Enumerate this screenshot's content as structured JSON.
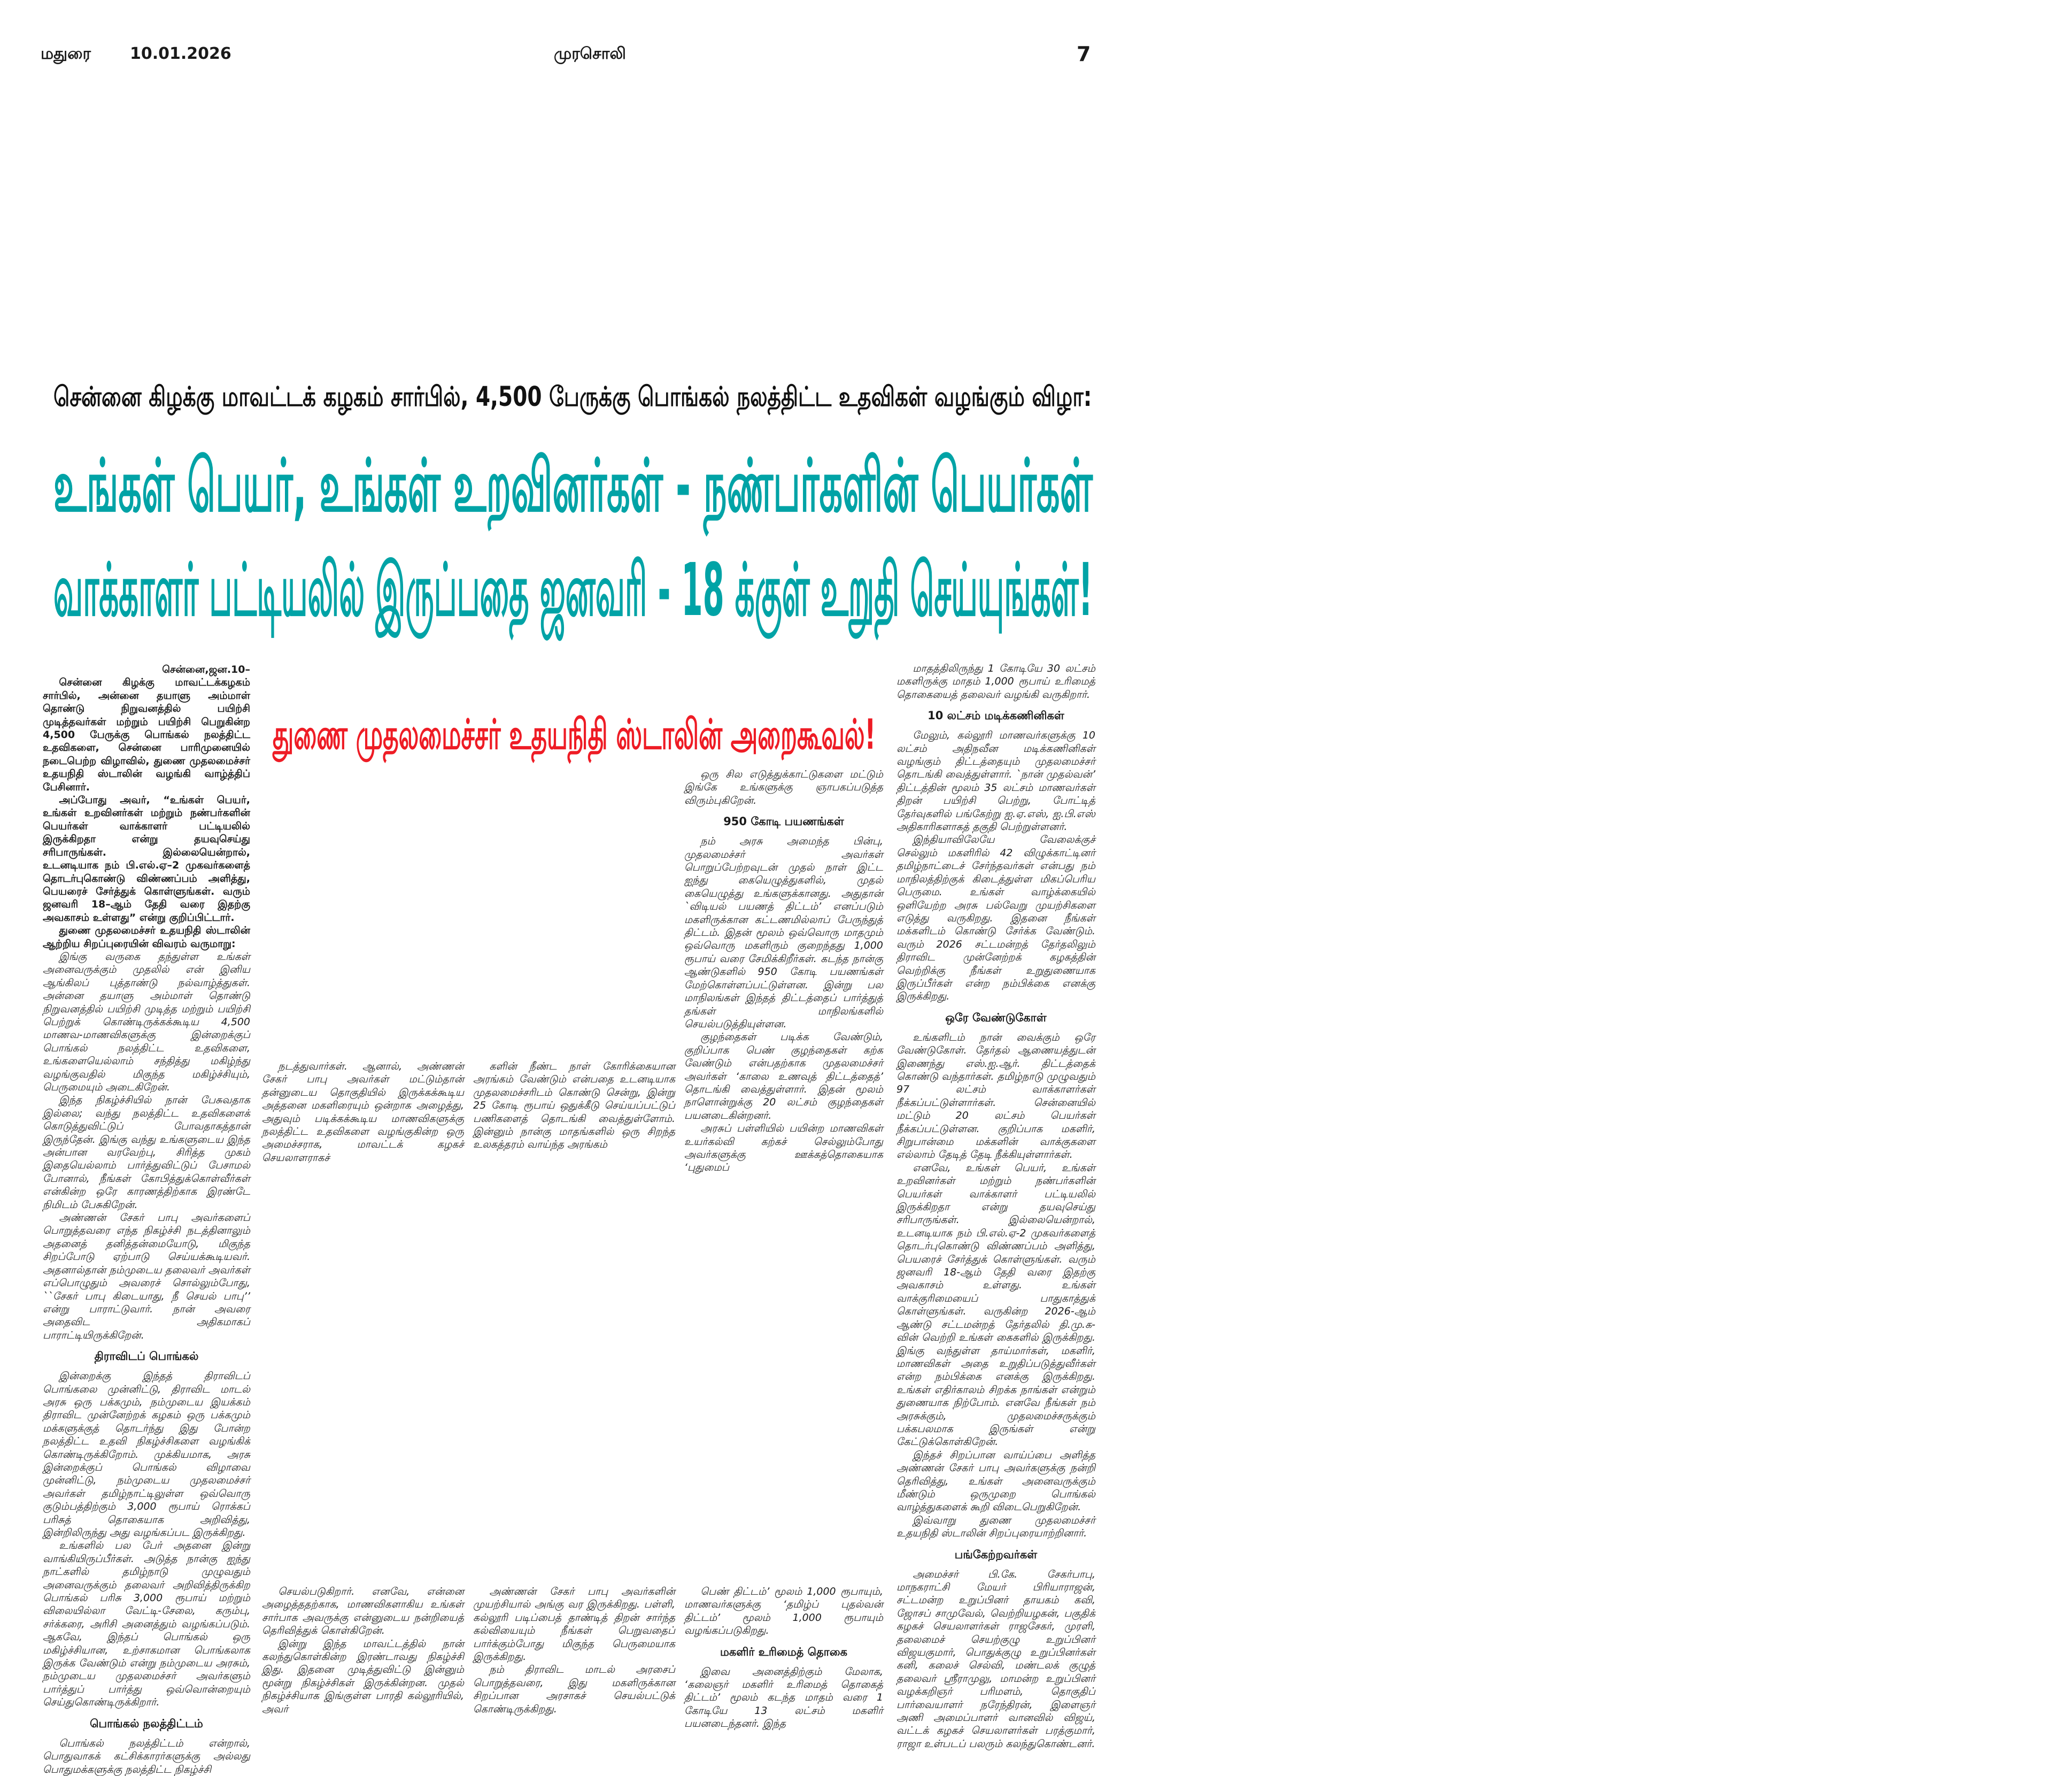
{
  "header": {
    "city": "மதுரை",
    "date": "10.01.2026",
    "masthead": "முரசொலி",
    "page_number": "7"
  },
  "headlines": {
    "kicker": "சென்னை கிழக்கு மாவட்டக் கழகம் சார்பில், 4,500 பேருக்கு பொங்கல் நலத்திட்ட உதவிகள் வழங்கும் விழா:",
    "main_line1": "உங்கள் பெயர், உங்கள்  உறவினர்கள் - நண்பர்களின் பெயர்கள்",
    "main_line2": "வாக்காளர் பட்டியலில் இருப்பதை  ஜனவரி - 18 க்குள் உறுதி செய்யுங்கள்!",
    "sub_red": "துணை முதலமைச்சர் உதயநிதி ஸ்டாலின் அறைகூவல்!"
  },
  "colors": {
    "teal_headline": "#00a3a6",
    "red_headline": "#ee1c25",
    "text": "#1a1a1a"
  },
  "columns": {
    "c1": [
      {
        "t": "dateline",
        "text": "சென்னை,ஜன.10–"
      },
      {
        "t": "lead",
        "text": "சென்னை கிழக்கு மாவட்டக்கழகம் சார்பில், அன்னை தயாளு அம்மாள் தொண்டு நிறுவனத்தில் பயிற்சி முடித்தவர்கள் மற்றும் பயிற்சி பெறுகின்ற 4,500 பேருக்கு பொங்கல் நலத்திட்ட உதவிகளை, சென்னை பாரிமுனையில் நடைபெற்ற விழாவில், துணை முதலமைச்சர் உதயநிதி ஸ்டாலின் வழங்கி வாழ்த்திப் பேசினார்."
      },
      {
        "t": "lead",
        "text": "அப்போது அவர், “உங்கள் பெயர், உங்கள் உறவினர்கள் மற்றும் நண்பர்களின் பெயர்கள் வாக்காளர் பட்டியலில் இருக்கிறதா என்று தயவுசெய்து சரிபாருங்கள். இல்லையென்றால், உடனடியாக நம் பி.எல்.ஏ–2 முகவர்களைத் தொடர்புகொண்டு விண்ணப்பம் அளித்து, பெயரைச் சேர்த்துக் கொள்ளுங்கள். வரும் ஜனவரி 18–ஆம் தேதி வரை இதற்கு அவகாசம் உள்ளது” என்று குறிப்பிட்டார்."
      },
      {
        "t": "lead",
        "text": "துணை முதலமைச்சர் உதயநிதி ஸ்டாலின் ஆற்றிய சிறப்புரையின் விவரம் வருமாறு:"
      },
      {
        "t": "body",
        "text": "இங்கு வருகை தந்துள்ள உங்கள் அனைவருக்கும் முதலில் என் இனிய ஆங்கிலப் புத்தாண்டு நல்வாழ்த்துகள். அன்னை தயாளு அம்மாள் தொண்டு நிறுவனத்தில் பயிற்சி முடித்த மற்றும் பயிற்சி பெற்றுக் கொண்டிருக்கக்கூடிய 4,500 மாணவ-மாணவிகளுக்கு இன்றைக்குப் பொங்கல் நலத்திட்ட உதவிகளை, உங்களையெல்லாம் சந்தித்து மகிழ்ந்து வழங்குவதில் மிகுந்த மகிழ்ச்சியும், பெருமையும் அடைகிறேன்."
      },
      {
        "t": "body",
        "text": "இந்த நிகழ்ச்சியில் நான் பேசுவதாக இல்லை; வந்து நலத்திட்ட உதவிகளைக் கொடுத்துவிட்டுப் போவதாகத்தான் இருந்தேன். இங்கு வந்து உங்களுடைய இந்த அன்பான வரவேற்பு, சிரித்த முகம் இதையெல்லாம் பார்த்துவிட்டுப் பேசாமல் போனால், நீங்கள் கோபித்துக்கொள்வீர்கள் என்கின்ற ஒரே காரணத்திற்காக இரண்டே நிமிடம் பேசுகிறேன்."
      },
      {
        "t": "body",
        "text": "அண்ணன் சேகர் பாபு அவர்களைப் பொறுத்தவரை எந்த நிகழ்ச்சி நடத்தினாலும் அதனைத் தனித்தன்மையோடு, மிகுந்த சிறப்போடு ஏற்பாடு செய்யக்கூடியவர். அதனால்தான் நம்முடைய தலைவர் அவர்கள் எப்பொழுதும் அவரைச் சொல்லும்போது, ``சேகர் பாபு கிடையாது, நீ செயல் பாபு’’ என்று பாராட்டுவார். நான் அவரை அதைவிட அதிகமாகப் பாராட்டியிருக்கிறேன்."
      },
      {
        "t": "heading",
        "text": "திராவிடப் பொங்கல்"
      },
      {
        "t": "body",
        "text": "இன்றைக்கு இந்தத் திராவிடப் பொங்கலை முன்னிட்டு, திராவிட மாடல் அரசு ஒரு பக்கமும், நம்முடைய இயக்கம் திராவிட முன்னேற்றக் கழகம் ஒரு பக்கமும் மக்களுக்குத் தொடர்ந்து இது போன்ற நலத்திட்ட உதவி நிகழ்ச்சிகளை வழங்கிக் கொண்டிருக்கிறோம். முக்கியமாக, அரசு இன்றைக்குப் பொங்கல் விழாவை முன்னிட்டு, நம்முடைய முதலமைச்சர் அவர்கள் தமிழ்நாட்டிலுள்ள ஒவ்வொரு குடும்பத்திற்கும் 3,000 ரூபாய் ரொக்கப் பரிசுத் தொகையாக அறிவித்து, இன்றிலிருந்து அது வழங்கப்பட இருக்கிறது."
      },
      {
        "t": "body",
        "text": "உங்களில் பல பேர் அதனை இன்று வாங்கியிருப்பீர்கள். அடுத்த நான்கு ஐந்து நாட்களில் தமிழ்நாடு முழுவதும் அனைவருக்கும் தலைவர் அறிவித்திருக்கிற பொங்கல் பரிசு 3,000 ரூபாய் மற்றும் விலையில்லா வேட்டி-சேலை, கரும்பு, சர்க்கரை, அரிசி அனைத்தும் வழங்கப்படும். ஆகவே, இந்தப் பொங்கல் ஒரு மகிழ்ச்சியான, உற்சாகமான பொங்கலாக இருக்க வேண்டும் என்று நம்முடைய அரசும், நம்முடைய முதலமைச்சர் அவர்களும் பார்த்துப் பார்த்து ஒவ்வொன்றையும் செய்துகொண்டிருக்கிறார்."
      },
      {
        "t": "heading",
        "text": "பொங்கல் நலத்திட்டம்"
      },
      {
        "t": "body",
        "text": "பொங்கல் நலத்திட்டம் என்றால், பொதுவாகக் கட்சிக்காரர்களுக்கு அல்லது பொதுமக்களுக்கு நலத்திட்ட நிகழ்ச்சி"
      }
    ],
    "c2_top": [
      {
        "t": "body",
        "text": "நடத்துவார்கள். ஆனால், அண்ணன் சேகர் பாபு அவர்கள் மட்டும்தான் தன்னுடைய தொகுதியில் இருக்கக்கூடிய அத்தனை மகளிரையும் ஒன்றாக அழைத்து, அதுவும் படிக்கக்கூடிய மாணவிகளுக்கு நலத்திட்ட உதவிகளை வழங்குகின்ற ஒரு அமைச்சராக, மாவட்டக் கழகச் செயலாளராகச்"
      }
    ],
    "c3_top": [
      {
        "t": "body",
        "text": "களின் நீண்ட நாள் கோரிக்கையான அரங்கம் வேண்டும் என்பதை உடனடியாக முதலமைச்சரிடம் கொண்டு சென்று, இன்று 25 கோடி ரூபாய் ஒதுக்கீடு செய்யப்பட்டுப் பணிகளைத் தொடங்கி வைத்துள்ளோம். இன்னும் நான்கு மாதங்களில் ஒரு சிறந்த உலகத்தரம் வாய்ந்த அரங்கம்"
      }
    ],
    "c4_top": [
      {
        "t": "body",
        "text": "ஒரு சில எடுத்துக்காட்டுகளை மட்டும் இங்கே உங்களுக்கு ஞாபகப்படுத்த விரும்புகிறேன்."
      },
      {
        "t": "heading",
        "text": "950 கோடி பயணங்கள்"
      },
      {
        "t": "body",
        "text": "நம் அரசு அமைந்த பின்பு, முதலமைச்சர் அவர்கள் பொறுப்பேற்றவுடன் முதல் நாள் இட்ட ஐந்து கையெழுத்துகளில், முதல் கையெழுத்து உங்களுக்கானது. அதுதான் `விடியல் பயணத் திட்டம்’ எனப்படும் மகளிருக்கான கட்டணமில்லாப் பேருந்துத் திட்டம். இதன் மூலம் ஒவ்வொரு மாதமும் ஒவ்வொரு மகளிரும் குறைந்தது 1,000 ரூபாய் வரை சேமிக்கிறீர்கள். கடந்த நான்கு ஆண்டுகளில் 950 கோடி பயணங்கள் மேற்கொள்ளப்பட்டுள்ளன. இன்று பல மாநிலங்கள் இந்தத் திட்டத்தைப் பார்த்துத் தங்கள் மாநிலங்களில் செயல்படுத்தியுள்ளன."
      },
      {
        "t": "body",
        "text": "குழந்தைகள் படிக்க வேண்டும், குறிப்பாக பெண் குழந்தைகள் கற்க வேண்டும் என்பதற்காக முதலமைச்சர் அவர்கள் ‘காலை உணவுத் திட்டத்தைத்’ தொடங்கி வைத்துள்ளார். இதன் மூலம் நாளொன்றுக்கு 20 லட்சம் குழந்தைகள் பயனடைகின்றனர்."
      },
      {
        "t": "body",
        "text": "அரசுப் பள்ளியில் பயின்ற மாணவிகள் உயர்கல்வி கற்கச் செல்லும்போது அவர்களுக்கு ஊக்கத்தொகையாக ‘புதுமைப்"
      }
    ],
    "c2_bottom": [
      {
        "t": "body",
        "text": "செயல்படுகிறார். எனவே, என்னை அழைத்ததற்காக, மாணவிகளாகிய உங்கள் சார்பாக அவருக்கு என்னுடைய நன்றியைத் தெரிவித்துக் கொள்கிறேன்."
      },
      {
        "t": "body",
        "text": "இன்று இந்த மாவட்டத்தில் நான் கலந்துகொள்கின்ற இரண்டாவது நிகழ்ச்சி இது. இதனை முடித்துவிட்டு இன்னும் மூன்று நிகழ்ச்சிகள் இருக்கின்றன. முதல் நிகழ்ச்சியாக இங்குள்ள பாரதி கல்லூரியில், அவர்"
      }
    ],
    "c3_bottom": [
      {
        "t": "body",
        "text": "அண்ணன் சேகர் பாபு அவர்களின் முயற்சியால் அங்கு வர இருக்கிறது. பள்ளி, கல்லூரி படிப்பைத் தாண்டித் திறன் சார்ந்த கல்வியையும் நீங்கள் பெறுவதைப் பார்க்கும்போது மிகுந்த பெருமையாக இருக்கிறது."
      },
      {
        "t": "body",
        "text": "நம் திராவிட மாடல் அரசைப் பொறுத்தவரை, இது மகளிருக்கான சிறப்பான அரசாகச் செயல்பட்டுக் கொண்டிருக்கிறது."
      }
    ],
    "c4_bottom": [
      {
        "t": "body",
        "text": "பெண் திட்டம்’ மூலம் 1,000 ரூபாயும், மாணவர்களுக்கு ‘தமிழ்ப் புதல்வன் திட்டம்’ மூலம் 1,000 ரூபாயும் வழங்கப்படுகிறது."
      },
      {
        "t": "heading",
        "text": "மகளிர் உரிமைத் தொகை"
      },
      {
        "t": "body",
        "text": "இவை அனைத்திற்கும் மேலாக, ‘கலைஞர் மகளிர் உரிமைத் தொகைத் திட்டம்’ மூலம் கடந்த மாதம் வரை 1 கோடியே 13 லட்சம் மகளிர் பயனடைந்தனர். இந்த"
      }
    ],
    "c5": [
      {
        "t": "body",
        "text": "மாதத்திலிருந்து 1 கோடியே 30 லட்சம் மகளிருக்கு மாதம் 1,000 ரூபாய் உரிமைத் தொகையைத் தலைவர் வழங்கி வருகிறார்."
      },
      {
        "t": "heading",
        "text": "10 லட்சம் மடிக்கணினிகள்"
      },
      {
        "t": "body",
        "text": "மேலும், கல்லூரி மாணவர்களுக்கு 10 லட்சம் அதிநவீன மடிக்கணினிகள் வழங்கும் திட்டத்தையும் முதலமைச்சர் தொடங்கி வைத்துள்ளார். `நான் முதல்வன்’ திட்டத்தின் மூலம் 35 லட்சம் மாணவர்கள் திறன் பயிற்சி பெற்று, போட்டித் தேர்வுகளில் பங்கேற்று ஐ.ஏ.எஸ், ஐ.பி.எஸ் அதிகாரிகளாகத் தகுதி பெற்றுள்ளனர்."
      },
      {
        "t": "body",
        "text": "இந்தியாவிலேயே வேலைக்குச் செல்லும் மகளிரில் 42 விழுக்காட்டினர் தமிழ்நாட்டைச் சேர்ந்தவர்கள் என்பது நம் மாநிலத்திற்குக் கிடைத்துள்ள மிகப்பெரிய பெருமை. உங்கள் வாழ்க்கையில் ஒளியேற்ற அரசு பல்வேறு முயற்சிகளை எடுத்து வருகிறது. இதனை நீங்கள் மக்களிடம் கொண்டு சேர்க்க வேண்டும். வரும் 2026 சட்டமன்றத் தேர்தலிலும் திராவிட முன்னேற்றக் கழகத்தின் வெற்றிக்கு நீங்கள் உறுதுணையாக இருப்பீர்கள் என்ற நம்பிக்கை எனக்கு இருக்கிறது."
      },
      {
        "t": "heading",
        "text": "ஒரே வேண்டுகோள்"
      },
      {
        "t": "body",
        "text": "உங்களிடம் நான் வைக்கும் ஒரே வேண்டுகோள். தேர்தல் ஆணையத்துடன் இணைந்து எஸ்.ஐ.ஆர். திட்டத்தைக் கொண்டு வந்தார்கள். தமிழ்நாடு முழுவதும் 97 லட்சம் வாக்காளர்கள் நீக்கப்பட்டுள்ளார்கள். சென்னையில் மட்டும் 20 லட்சம் பெயர்கள் நீக்கப்பட்டுள்ளன. குறிப்பாக மகளிர், சிறுபான்மை மக்களின் வாக்குகளை எல்லாம் தேடித் தேடி நீக்கியுள்ளார்கள்."
      },
      {
        "t": "body",
        "text": "எனவே, உங்கள் பெயர், உங்கள் உறவினர்கள் மற்றும் நண்பர்களின் பெயர்கள் வாக்காளர் பட்டியலில் இருக்கிறதா என்று தயவுசெய்து சரிபாருங்கள். இல்லையென்றால், உடனடியாக நம் பி.எல்.ஏ-2 முகவர்களைத் தொடர்புகொண்டு விண்ணப்பம் அளித்து, பெயரைச் சேர்த்துக் கொள்ளுங்கள். வரும் ஜனவரி 18-ஆம் தேதி வரை இதற்கு அவகாசம் உள்ளது. உங்கள் வாக்குரிமையைப் பாதுகாத்துக் கொள்ளுங்கள். வருகின்ற 2026-ஆம் ஆண்டு சட்டமன்றத் தேர்தலில் தி.மு.க-வின் வெற்றி உங்கள் கைகளில் இருக்கிறது. இங்கு வந்துள்ள தாய்மார்கள், மகளிர், மாணவிகள் அதை உறுதிப்படுத்துவீர்கள் என்ற நம்பிக்கை எனக்கு இருக்கிறது. உங்கள் எதிர்காலம் சிறக்க நாங்கள் என்றும் துணையாக நிற்போம். எனவே நீங்கள் நம் அரசுக்கும், முதலமைச்சருக்கும் பக்கபலமாக இருங்கள் என்று கேட்டுக்கொள்கிறேன்."
      },
      {
        "t": "body",
        "text": "இந்தச் சிறப்பான வாய்ப்பை அளித்த அண்ணன் சேகர் பாபு அவர்களுக்கு நன்றி தெரிவித்து, உங்கள் அனைவருக்கும் மீண்டும் ஒருமுறை பொங்கல் வாழ்த்துகளைக் கூறி விடைபெறுகிறேன்."
      },
      {
        "t": "body",
        "text": "இவ்வாறு துணை முதலமைச்சர் உதயநிதி ஸ்டாலின் சிறப்புரையாற்றினார்."
      },
      {
        "t": "heading",
        "text": "பங்கேற்றவர்கள்"
      },
      {
        "t": "body",
        "text": "அமைச்சர் பி.கே. சேகர்பாபு, மாநகராட்சி மேயர் பிரியாராஜன், சட்டமன்ற உறுப்பினர் தாயகம் கவி, ஜோசப் சாமுவேல், வெற்றியழகன், பகுதிக் கழகச் செயலாளர்கள் ராஜசேகர், முரளி, தலைமைச் செயற்குழு உறுப்பினர் விஜயகுமார், பொதுக்குழு உறுப்பினர்கள் கனி, கலைச் செல்வி, மண்டலக் குழுத் தலைவர் ஸ்ரீராமுலு, மாமன்ற உறுப்பினர் வழக்கறிஞர் பரிமளம், தொகுதிப் பார்வையாளர் நரேந்திரன், இளைஞர் அணி அமைப்பாளர் வானவில் விஜய், வட்டக் கழகச் செயலாளர்கள் பரத்குமார், ராஜா உள்படப் பலரும் கலந்துகொண்டனர்."
      }
    ]
  }
}
